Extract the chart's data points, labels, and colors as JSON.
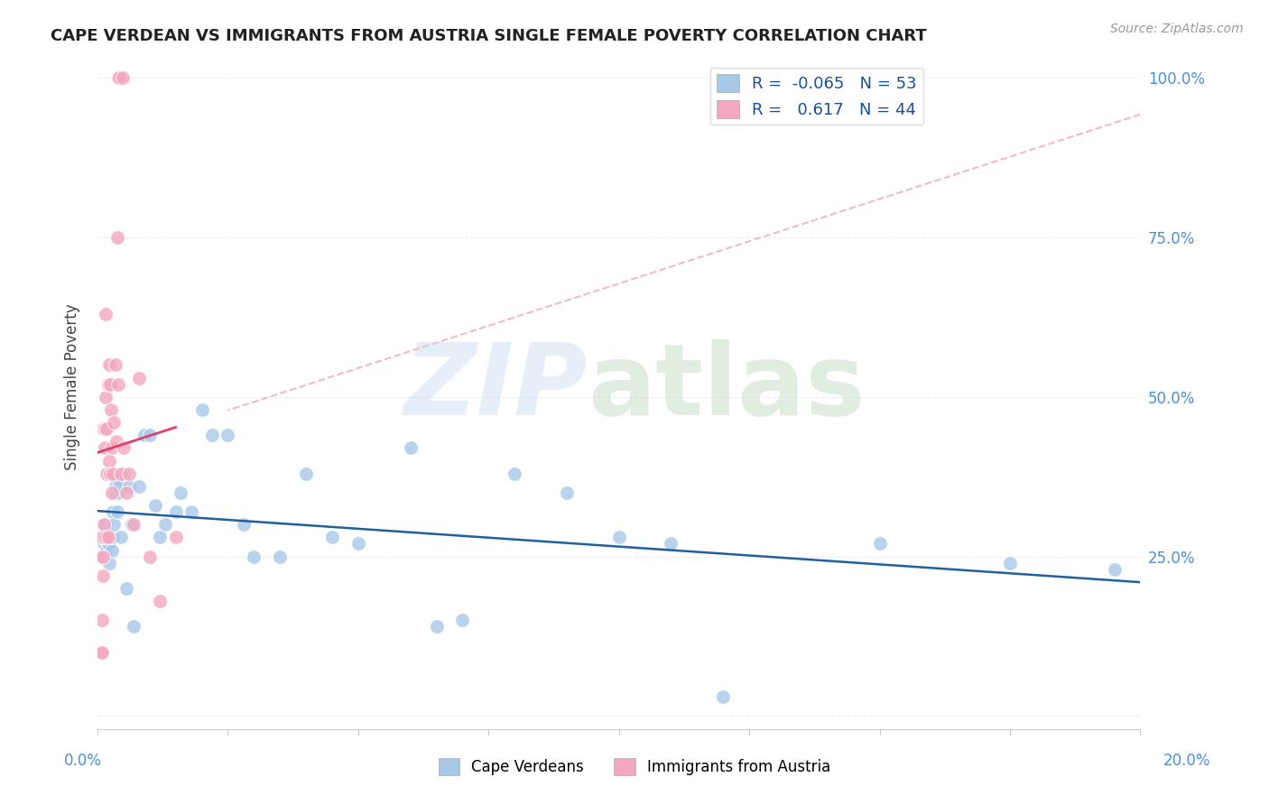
{
  "title": "CAPE VERDEAN VS IMMIGRANTS FROM AUSTRIA SINGLE FEMALE POVERTY CORRELATION CHART",
  "source": "Source: ZipAtlas.com",
  "ylabel": "Single Female Poverty",
  "legend_label1": "Cape Verdeans",
  "legend_label2": "Immigrants from Austria",
  "R_blue": -0.065,
  "N_blue": 53,
  "R_pink": 0.617,
  "N_pink": 44,
  "blue_scatter_color": "#a8c8e8",
  "pink_scatter_color": "#f4a8c0",
  "blue_line_color": "#2060a0",
  "pink_line_color": "#e04070",
  "pink_dashed_color": "#e8a0b0",
  "grid_color": "#e8eef4",
  "xlim": [
    0.0,
    0.2
  ],
  "ylim": [
    -0.02,
    1.05
  ],
  "blue_x": [
    0.0008,
    0.001,
    0.0012,
    0.0015,
    0.0018,
    0.002,
    0.0022,
    0.0025,
    0.0028,
    0.003,
    0.003,
    0.0032,
    0.0035,
    0.0035,
    0.0038,
    0.004,
    0.0042,
    0.0045,
    0.0048,
    0.005,
    0.0055,
    0.006,
    0.0065,
    0.007,
    0.008,
    0.009,
    0.01,
    0.011,
    0.012,
    0.013,
    0.015,
    0.016,
    0.018,
    0.02,
    0.022,
    0.025,
    0.028,
    0.03,
    0.035,
    0.04,
    0.045,
    0.05,
    0.06,
    0.065,
    0.07,
    0.08,
    0.09,
    0.1,
    0.11,
    0.12,
    0.15,
    0.175,
    0.195
  ],
  "blue_y": [
    0.28,
    0.25,
    0.27,
    0.3,
    0.26,
    0.27,
    0.24,
    0.28,
    0.26,
    0.32,
    0.28,
    0.3,
    0.35,
    0.36,
    0.32,
    0.35,
    0.36,
    0.28,
    0.38,
    0.38,
    0.2,
    0.36,
    0.3,
    0.14,
    0.36,
    0.44,
    0.44,
    0.33,
    0.28,
    0.3,
    0.32,
    0.35,
    0.32,
    0.48,
    0.44,
    0.44,
    0.3,
    0.25,
    0.25,
    0.38,
    0.28,
    0.27,
    0.42,
    0.14,
    0.15,
    0.38,
    0.35,
    0.28,
    0.27,
    0.03,
    0.27,
    0.24,
    0.23
  ],
  "pink_x": [
    0.0005,
    0.0005,
    0.0007,
    0.0008,
    0.0008,
    0.001,
    0.001,
    0.001,
    0.001,
    0.0012,
    0.0013,
    0.0014,
    0.0015,
    0.0015,
    0.0016,
    0.0018,
    0.0018,
    0.002,
    0.002,
    0.0022,
    0.0022,
    0.0024,
    0.0025,
    0.0026,
    0.0028,
    0.0028,
    0.003,
    0.0032,
    0.0034,
    0.0036,
    0.0038,
    0.004,
    0.004,
    0.0042,
    0.0045,
    0.0048,
    0.005,
    0.0055,
    0.006,
    0.007,
    0.008,
    0.01,
    0.012,
    0.015
  ],
  "pink_y": [
    0.28,
    0.25,
    0.1,
    0.15,
    0.1,
    0.28,
    0.25,
    0.22,
    0.45,
    0.3,
    0.42,
    0.45,
    0.28,
    0.5,
    0.63,
    0.38,
    0.45,
    0.28,
    0.52,
    0.4,
    0.55,
    0.38,
    0.52,
    0.48,
    0.35,
    0.42,
    0.38,
    0.46,
    0.55,
    0.43,
    0.75,
    0.52,
    1.0,
    1.0,
    0.38,
    1.0,
    0.42,
    0.35,
    0.38,
    0.3,
    0.53,
    0.25,
    0.18,
    0.28
  ],
  "ytick_vals": [
    0.0,
    0.25,
    0.5,
    0.75,
    1.0
  ],
  "ytick_labels": [
    "",
    "25.0%",
    "50.0%",
    "75.0%",
    "100.0%"
  ],
  "xtick_vals": [
    0.0,
    0.025,
    0.05,
    0.075,
    0.1,
    0.125,
    0.15,
    0.175,
    0.2
  ],
  "right_tick_color": "#4a90d9",
  "bottom_tick_color": "#aaaaaa"
}
